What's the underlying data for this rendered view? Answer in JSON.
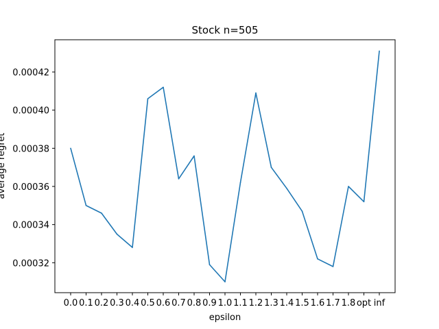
{
  "chart_data": {
    "type": "line",
    "title": "Stock n=505",
    "xlabel": "epsilon",
    "ylabel": "average regret",
    "categories": [
      "0.0",
      "0.1",
      "0.2",
      "0.3",
      "0.4",
      "0.5",
      "0.6",
      "0.7",
      "0.8",
      "0.9",
      "1.0",
      "1.1",
      "1.2",
      "1.3",
      "1.4",
      "1.5",
      "1.6",
      "1.7",
      "1.8",
      "opt",
      "inf"
    ],
    "series": [
      {
        "values": [
          0.00038,
          0.00035,
          0.000346,
          0.000335,
          0.000328,
          0.000406,
          0.000412,
          0.000364,
          0.000376,
          0.000319,
          0.00031,
          0.000362,
          0.000409,
          0.00037,
          0.000359,
          0.000347,
          0.000322,
          0.000318,
          0.00036,
          0.000352,
          0.000431
        ]
      }
    ],
    "yticks": [
      "0.00032",
      "0.00034",
      "0.00036",
      "0.00038",
      "0.00040",
      "0.00042"
    ],
    "ytick_values": [
      0.00032,
      0.00034,
      0.00036,
      0.00038,
      0.0004,
      0.00042
    ],
    "ylim": [
      0.0003043,
      0.0004369
    ],
    "grid": false,
    "legend": false,
    "line_color": "#1f77b4"
  }
}
